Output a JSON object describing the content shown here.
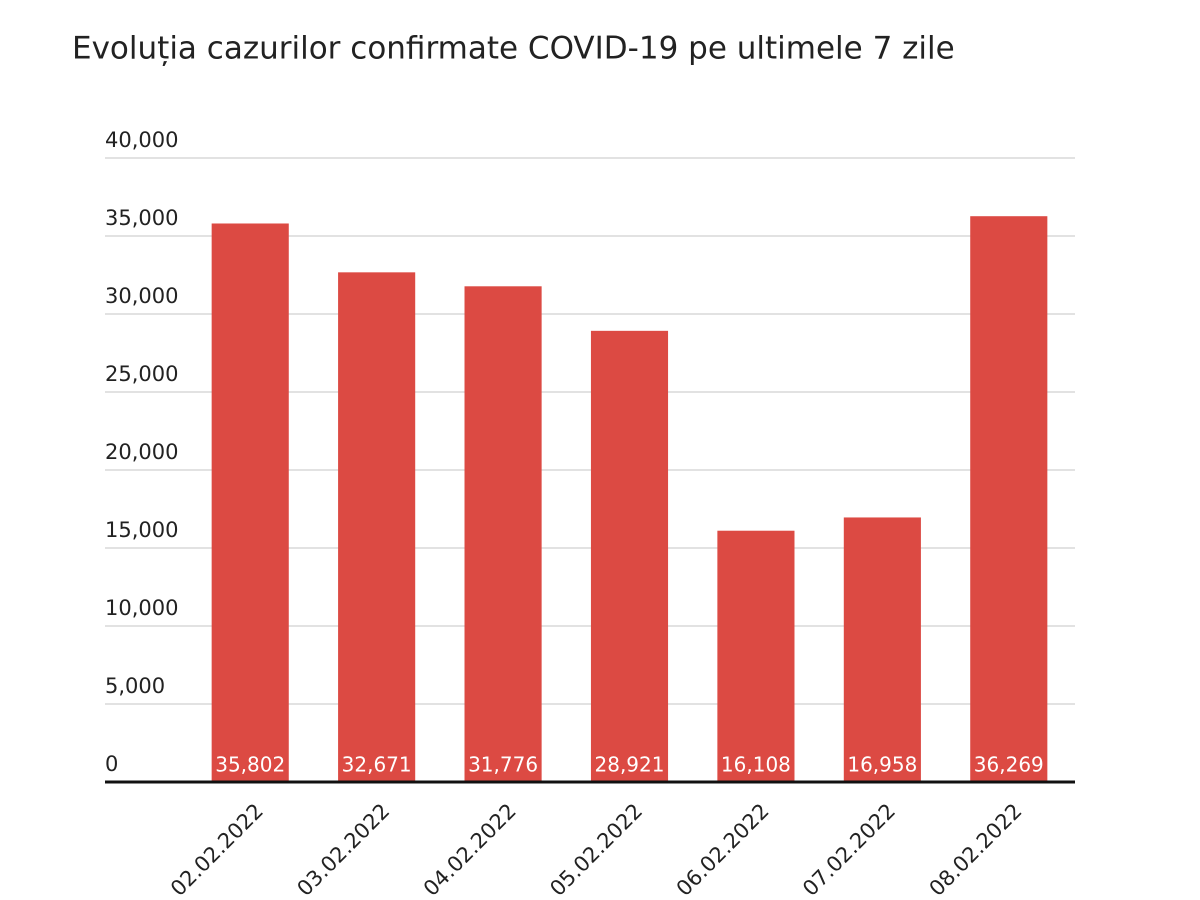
{
  "chart_data": {
    "type": "bar",
    "title": "Evoluția cazurilor confirmate COVID-19 pe ultimele 7 zile",
    "categories": [
      "02.02.2022",
      "03.02.2022",
      "04.02.2022",
      "05.02.2022",
      "06.02.2022",
      "07.02.2022",
      "08.02.2022"
    ],
    "values": [
      35802,
      32671,
      31776,
      28921,
      16108,
      16958,
      36269
    ],
    "value_labels": [
      "35,802",
      "32,671",
      "31,776",
      "28,921",
      "16,108",
      "16,958",
      "36,269"
    ],
    "color": "#dc4a43",
    "ylim": [
      0,
      40000
    ],
    "yticks": [
      0,
      {
        "value": 5000,
        "label": "5,000"
      },
      {
        "value": 10000,
        "label": "10,000"
      },
      {
        "value": 15000,
        "label": "15,000"
      },
      {
        "value": 20000,
        "label": "20,000"
      },
      {
        "value": 25000,
        "label": "25,000"
      },
      {
        "value": 30000,
        "label": "30,000"
      },
      {
        "value": 35000,
        "label": "35,000"
      },
      {
        "value": 40000,
        "label": "40,000"
      }
    ],
    "grid": true
  }
}
